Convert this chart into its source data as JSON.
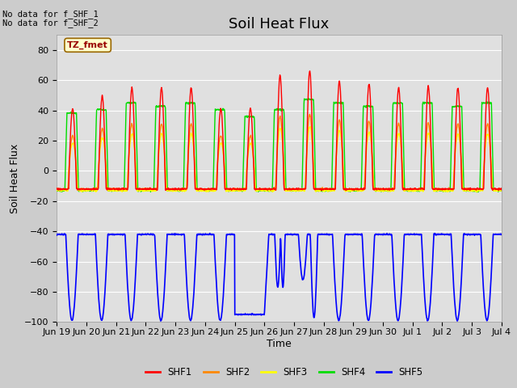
{
  "title": "Soil Heat Flux",
  "xlabel": "Time",
  "ylabel": "Soil Heat Flux",
  "ylim": [
    -100,
    90
  ],
  "yticks": [
    -100,
    -80,
    -60,
    -40,
    -20,
    0,
    20,
    40,
    60,
    80
  ],
  "series_colors": {
    "SHF1": "#ff0000",
    "SHF2": "#ff8800",
    "SHF3": "#ffff00",
    "SHF4": "#00dd00",
    "SHF5": "#0000ff"
  },
  "text_no_data_1": "No data for f_SHF_1",
  "text_no_data_2": "No data for f_SHF_2",
  "legend_label": "TZ_fmet",
  "legend_box_color": "#ffffcc",
  "legend_box_edge": "#996600",
  "title_fontsize": 13,
  "axis_label_fontsize": 9,
  "tick_fontsize": 8,
  "xtick_labels": [
    "Jun 19",
    "Jun 20",
    "Jun 21",
    "Jun 22",
    "Jun 23",
    "Jun 24",
    "Jun 25",
    "Jun 26",
    "Jun 27",
    "Jun 28",
    "Jun 29",
    "Jun 30",
    "Jul 1",
    "Jul 2",
    "Jul 3",
    "Jul 4"
  ],
  "n_days": 15,
  "n_points": 1500
}
